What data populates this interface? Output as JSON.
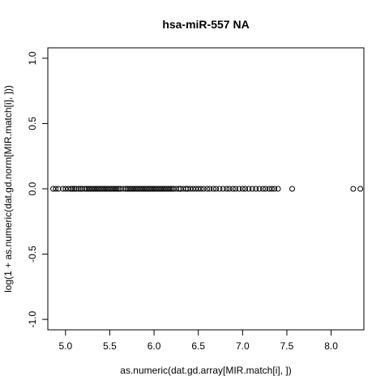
{
  "chart_data": {
    "type": "scatter",
    "title": "hsa-miR-557   NA",
    "xlabel": "as.numeric(dat.gd.array[MIR.match[i], ])",
    "ylabel": "log(1 + as.numeric(dat.gd.norm[MIR.match[i], ]))",
    "xlim": [
      4.8,
      8.37
    ],
    "ylim": [
      -1.08,
      1.08
    ],
    "x_ticks": [
      5.0,
      5.5,
      6.0,
      6.5,
      7.0,
      7.5,
      8.0
    ],
    "x_tick_labels": [
      "5.0",
      "5.5",
      "6.0",
      "6.5",
      "7.0",
      "7.5",
      "8.0"
    ],
    "y_ticks": [
      -1.0,
      -0.5,
      0.0,
      0.5,
      1.0
    ],
    "y_tick_labels": [
      "-1.0",
      "-0.5",
      "0.0",
      "0.5",
      "1.0"
    ],
    "grid": false,
    "points": {
      "x": [
        4.86,
        4.89,
        4.92,
        4.97,
        5.0,
        5.03,
        5.06,
        5.08,
        5.1,
        5.12,
        5.15,
        5.17,
        5.19,
        5.22,
        5.24,
        5.26,
        5.28,
        5.3,
        5.32,
        5.34,
        5.36,
        5.38,
        5.4,
        5.42,
        5.44,
        5.46,
        5.48,
        5.5,
        5.52,
        5.54,
        5.56,
        5.58,
        5.6,
        5.62,
        5.65,
        5.68,
        5.7,
        5.72,
        5.74,
        5.76,
        5.78,
        5.8,
        5.82,
        5.84,
        5.86,
        5.88,
        5.9,
        5.92,
        5.94,
        5.96,
        5.98,
        6.0,
        6.02,
        6.04,
        6.06,
        6.08,
        6.1,
        6.12,
        6.14,
        6.16,
        6.18,
        6.2,
        6.22,
        6.25,
        6.28,
        6.3,
        6.33,
        6.36,
        6.38,
        6.41,
        6.44,
        6.47,
        6.5,
        6.53,
        6.56,
        6.6,
        6.63,
        6.67,
        6.7,
        6.74,
        6.78,
        6.82,
        6.85,
        6.89,
        6.92,
        6.96,
        7.0,
        7.03,
        7.07,
        7.11,
        7.15,
        7.19,
        7.23,
        7.26,
        7.3,
        7.33,
        7.36,
        7.4,
        7.56,
        8.25,
        8.33
      ],
      "y": [
        0,
        0,
        0,
        0,
        0,
        0,
        0,
        0,
        0,
        0,
        0,
        0,
        0,
        0,
        0,
        0,
        0,
        0,
        0,
        0,
        0,
        0,
        0,
        0,
        0,
        0,
        0,
        0,
        0,
        0,
        0,
        0,
        0,
        0,
        0,
        0,
        0,
        0,
        0,
        0,
        0,
        0,
        0,
        0,
        0,
        0,
        0,
        0,
        0,
        0,
        0,
        0,
        0,
        0,
        0,
        0,
        0,
        0,
        0,
        0,
        0,
        0,
        0,
        0,
        0,
        0,
        0,
        0,
        0,
        0,
        0,
        0,
        0,
        0,
        0,
        0,
        0,
        0,
        0,
        0,
        0,
        0,
        0,
        0,
        0,
        0,
        0,
        0,
        0,
        0,
        0,
        0,
        0,
        0,
        0,
        0,
        0,
        0,
        0,
        0,
        0
      ]
    }
  }
}
